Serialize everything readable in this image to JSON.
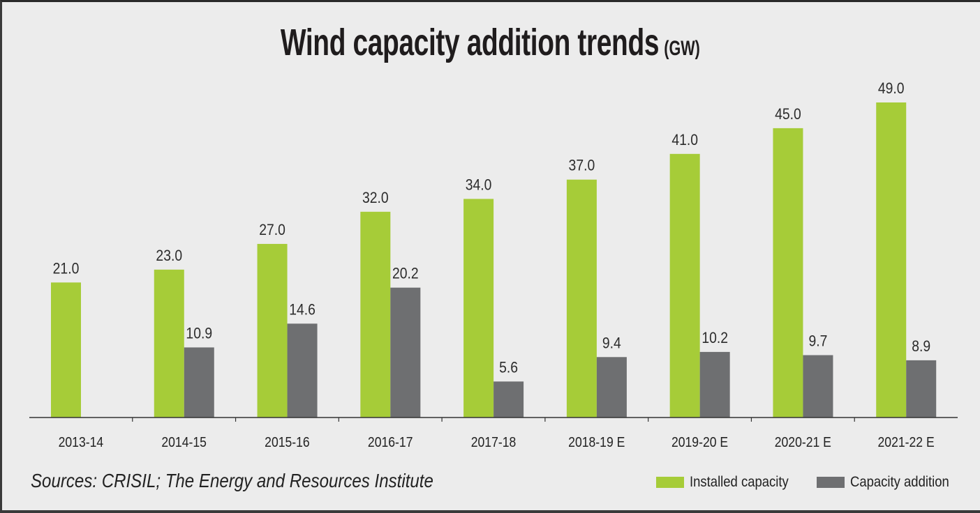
{
  "colors": {
    "installed": "#a6cc38",
    "addition": "#6e6f71",
    "background": "#ececec",
    "text": "#222222"
  },
  "title": {
    "main": "Wind capacity addition trends",
    "unit": "(GW)"
  },
  "source": "Sources: CRISIL; The Energy and Resources Institute",
  "legend": {
    "installed": "Installed capacity",
    "addition": "Capacity addition"
  },
  "chart_data": {
    "type": "bar",
    "title": "Wind capacity addition trends (GW)",
    "xlabel": "",
    "ylabel": "GW",
    "ylim": [
      0,
      49
    ],
    "grid": false,
    "legend_position": "bottom-right",
    "categories": [
      "2013-14",
      "2014-15",
      "2015-16",
      "2016-17",
      "2017-18",
      "2018-19 E",
      "2019-20 E",
      "2020-21 E",
      "2021-22 E"
    ],
    "series": [
      {
        "name": "Installed capacity",
        "values": [
          21.0,
          23.0,
          27.0,
          32.0,
          34.0,
          37.0,
          41.0,
          45.0,
          49.0
        ],
        "labels": [
          "21.0",
          "23.0",
          "27.0",
          "32.0",
          "34.0",
          "37.0",
          "41.0",
          "45.0",
          "49.0"
        ]
      },
      {
        "name": "Capacity addition",
        "values": [
          null,
          10.9,
          14.6,
          20.2,
          5.6,
          9.4,
          10.2,
          9.7,
          8.9
        ],
        "labels": [
          null,
          "10.9",
          "14.6",
          "20.2",
          "5.6",
          "9.4",
          "10.2",
          "9.7",
          "8.9"
        ]
      }
    ]
  }
}
